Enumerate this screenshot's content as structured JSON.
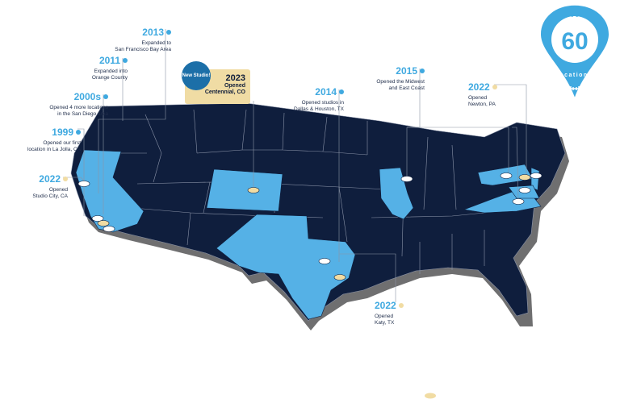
{
  "badge": {
    "over": "over",
    "count": "60",
    "label": "locations"
  },
  "new_callout": {
    "tag": "New Studio!",
    "year": "2023",
    "line1": "Opened",
    "line2": "Centennial, CO"
  },
  "milestones": [
    {
      "year": "2013",
      "line1": "Expanded to",
      "line2": "San Francisco Bay Area"
    },
    {
      "year": "2011",
      "line1": "Expanded into",
      "line2": "Orange County"
    },
    {
      "year": "2000s",
      "line1": "Opened 4 more locations",
      "line2": "in the San Diego area"
    },
    {
      "year": "1999",
      "line1": "Opened our first",
      "line2": "location in La Jolla, CA"
    },
    {
      "year": "2022",
      "line1": "Opened",
      "line2": "Studio City, CA"
    },
    {
      "year": "2014",
      "line1": "Opened studios in",
      "line2": "Dallas & Houston, TX"
    },
    {
      "year": "2015",
      "line1": "Opened the Midwest",
      "line2": "and East Coast"
    },
    {
      "year": "2022",
      "line1": "Opened",
      "line2": "Newton, PA"
    },
    {
      "year": "2022",
      "line1": "Opened",
      "line2": "Katy, TX"
    }
  ],
  "colors": {
    "base_states": "#0f1e3d",
    "highlight_states": "#55b1e6",
    "accent": "#3fa9e0",
    "new_marker": "#f1dca3",
    "shadow": "#6f6f70"
  }
}
